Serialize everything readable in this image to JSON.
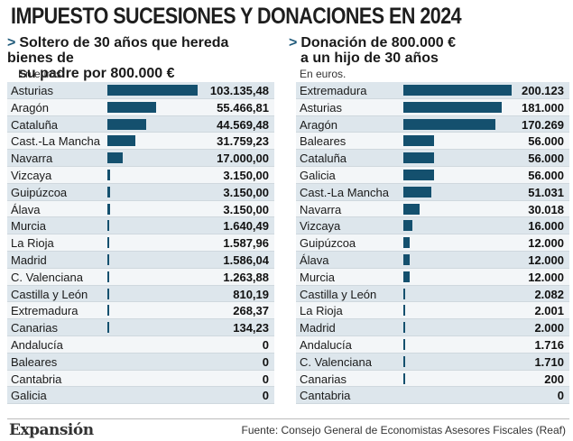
{
  "title": "IMPUESTO SUCESIONES Y DONACIONES EN 2024",
  "arrow": ">",
  "unit_label": "En euros.",
  "colors": {
    "bar": "#14506e",
    "row_odd": "#dde6ec",
    "row_even": "#f3f6f8",
    "arrow": "#1f5a7a"
  },
  "chart_data": [
    {
      "type": "bar",
      "orientation": "horizontal",
      "title_line1": "Soltero de 30 años que hereda bienes de",
      "title_line2": "su padre por 800.000 €",
      "unit": "En euros.",
      "categories": [
        "Asturias",
        "Aragón",
        "Cataluña",
        "Cast.-La Mancha",
        "Navarra",
        "Vizcaya",
        "Guipúzcoa",
        "Álava",
        "Murcia",
        "La Rioja",
        "Madrid",
        "C. Valenciana",
        "Castilla y León",
        "Extremadura",
        "Canarias",
        "Andalucía",
        "Baleares",
        "Cantabria",
        "Galicia"
      ],
      "values": [
        103135.48,
        55466.81,
        44569.48,
        31759.23,
        17000.0,
        3150.0,
        3150.0,
        3150.0,
        1640.49,
        1587.96,
        1586.04,
        1263.88,
        810.19,
        268.37,
        134.23,
        0,
        0,
        0,
        0
      ],
      "value_labels": [
        "103.135,48",
        "55.466,81",
        "44.569,48",
        "31.759,23",
        "17.000,00",
        "3.150,00",
        "3.150,00",
        "3.150,00",
        "1.640,49",
        "1.587,96",
        "1.586,04",
        "1.263,88",
        "810,19",
        "268,37",
        "134,23",
        "0",
        "0",
        "0",
        "0"
      ],
      "xlim": [
        0,
        103135.48
      ]
    },
    {
      "type": "bar",
      "orientation": "horizontal",
      "title_line1": "Donación de  800.000 €",
      "title_line2": "a un hijo de 30 años",
      "unit": "En euros.",
      "categories": [
        "Extremadura",
        "Asturias",
        "Aragón",
        "Baleares",
        "Cataluña",
        "Galicia",
        "Cast.-La Mancha",
        "Navarra",
        "Vizcaya",
        "Guipúzcoa",
        "Álava",
        "Murcia",
        "Castilla y León",
        "La Rioja",
        "Madrid",
        "Andalucía",
        "C. Valenciana",
        "Canarias",
        "Cantabria"
      ],
      "values": [
        200123,
        181000,
        170269,
        56000,
        56000,
        56000,
        51031,
        30018,
        16000,
        12000,
        12000,
        12000,
        2082,
        2001,
        2000,
        1716,
        1710,
        200,
        0
      ],
      "value_labels": [
        "200.123",
        "181.000",
        "170.269",
        "56.000",
        "56.000",
        "56.000",
        "51.031",
        "30.018",
        "16.000",
        "12.000",
        "12.000",
        "12.000",
        "2.082",
        "2.001",
        "2.000",
        "1.716",
        "1.710",
        "200",
        "0"
      ],
      "xlim": [
        0,
        200123
      ]
    }
  ],
  "footer": {
    "brand": "Expansión",
    "source": "Fuente: Consejo General de Economistas Asesores Fiscales (Reaf)"
  }
}
